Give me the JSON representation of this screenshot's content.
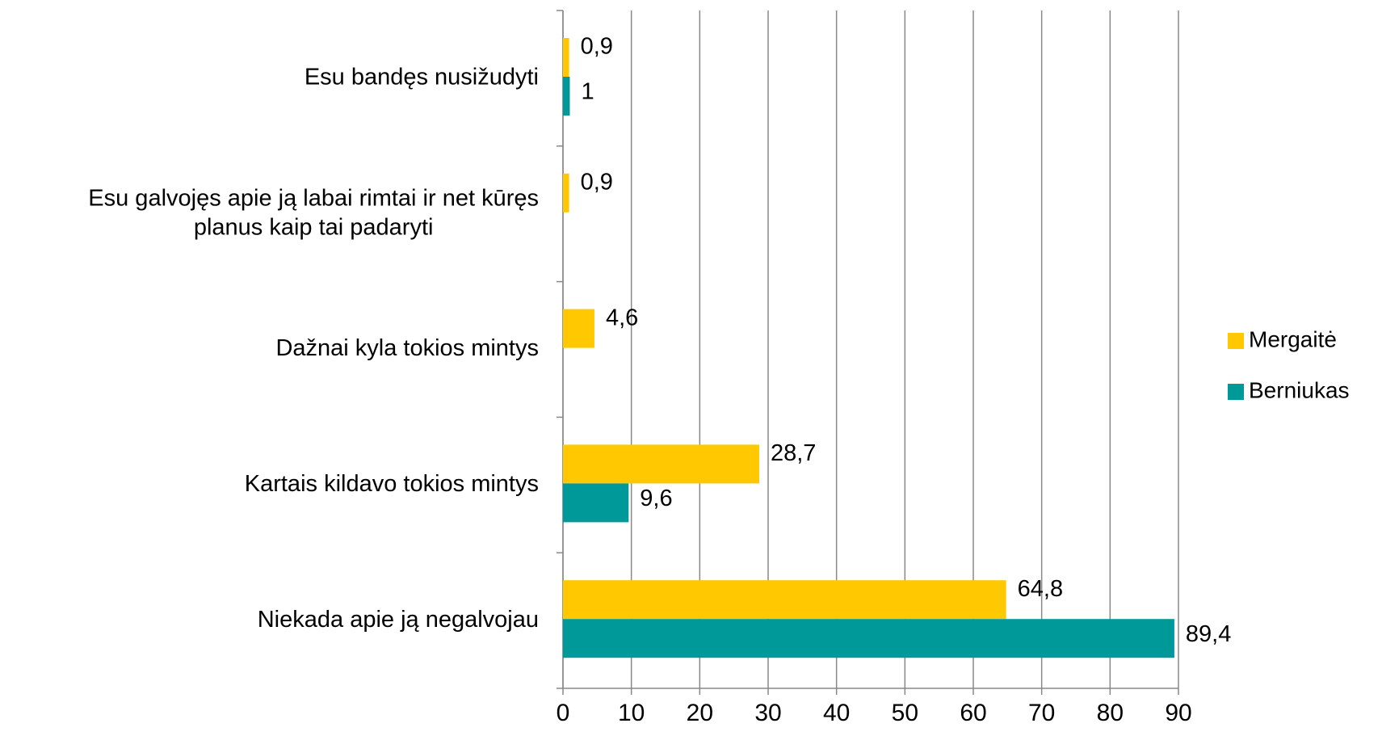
{
  "chart_data": {
    "type": "bar",
    "orientation": "horizontal",
    "categories": [
      "Esu bandęs nusižudyti",
      "Esu galvojęs apie ją labai rimtai ir net kūręs planus kaip tai padaryti",
      "Dažnai kyla tokios mintys",
      "Kartais kildavo tokios mintys",
      "Niekada apie ją negalvojau"
    ],
    "series": [
      {
        "name": "Mergaitė",
        "color": "#ffc800",
        "values": [
          0.9,
          0.9,
          4.6,
          28.7,
          64.8
        ],
        "value_labels": [
          "0,9",
          "0,9",
          "4,6",
          "28,7",
          "64,8"
        ]
      },
      {
        "name": "Berniukas",
        "color": "#009999",
        "values": [
          1,
          null,
          null,
          9.6,
          89.4
        ],
        "value_labels": [
          "1",
          null,
          null,
          "9,6",
          "89,4"
        ]
      }
    ],
    "xlim": [
      0,
      90
    ],
    "xticks": [
      0,
      10,
      20,
      30,
      40,
      50,
      60,
      70,
      80,
      90
    ],
    "grid": true,
    "legend": "right"
  }
}
